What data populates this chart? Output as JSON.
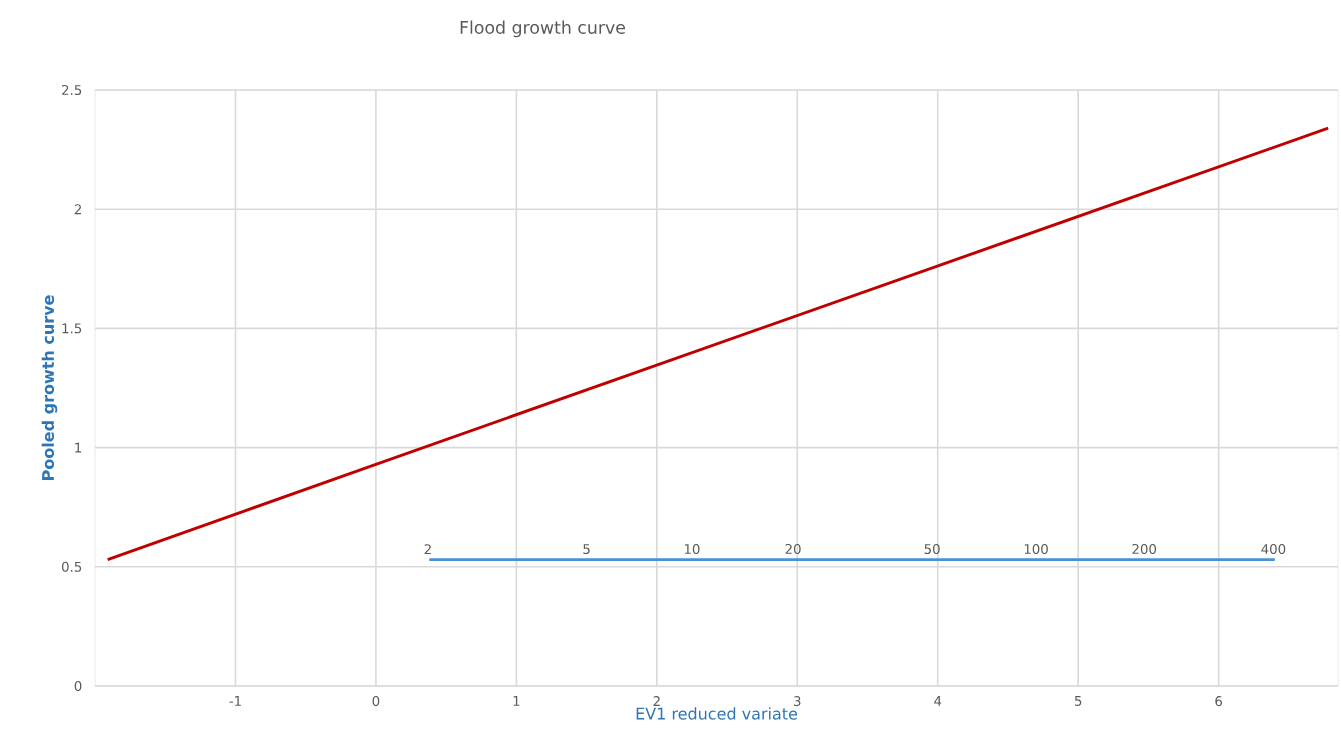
{
  "chart_data": {
    "type": "line",
    "title": "Flood growth curve",
    "xlabel": "EV1 reduced variate",
    "ylabel": "Pooled growth curve",
    "xlim": [
      -2,
      6.85
    ],
    "ylim": [
      0,
      2.5
    ],
    "xticks": [
      -1,
      0,
      1,
      2,
      3,
      4,
      5,
      6
    ],
    "yticks": [
      0,
      0.5,
      1,
      1.5,
      2,
      2.5
    ],
    "grid": true,
    "series": [
      {
        "color": "#c00000",
        "x": [
          -1.91,
          0,
          6.78
        ],
        "values": [
          0.53,
          0.93,
          2.34
        ]
      },
      {
        "color": "#4a90d9",
        "x": [
          0.38,
          6.4
        ],
        "values": [
          0.53,
          0.53
        ]
      }
    ],
    "annotations": [
      {
        "text": "2",
        "x": 0.37,
        "y": 0.53
      },
      {
        "text": "5",
        "x": 1.5,
        "y": 0.53
      },
      {
        "text": "10",
        "x": 2.25,
        "y": 0.53
      },
      {
        "text": "20",
        "x": 2.97,
        "y": 0.53
      },
      {
        "text": "50",
        "x": 3.96,
        "y": 0.53
      },
      {
        "text": "100",
        "x": 4.7,
        "y": 0.53
      },
      {
        "text": "200",
        "x": 5.47,
        "y": 0.53
      },
      {
        "text": "400",
        "x": 6.39,
        "y": 0.53
      }
    ]
  }
}
